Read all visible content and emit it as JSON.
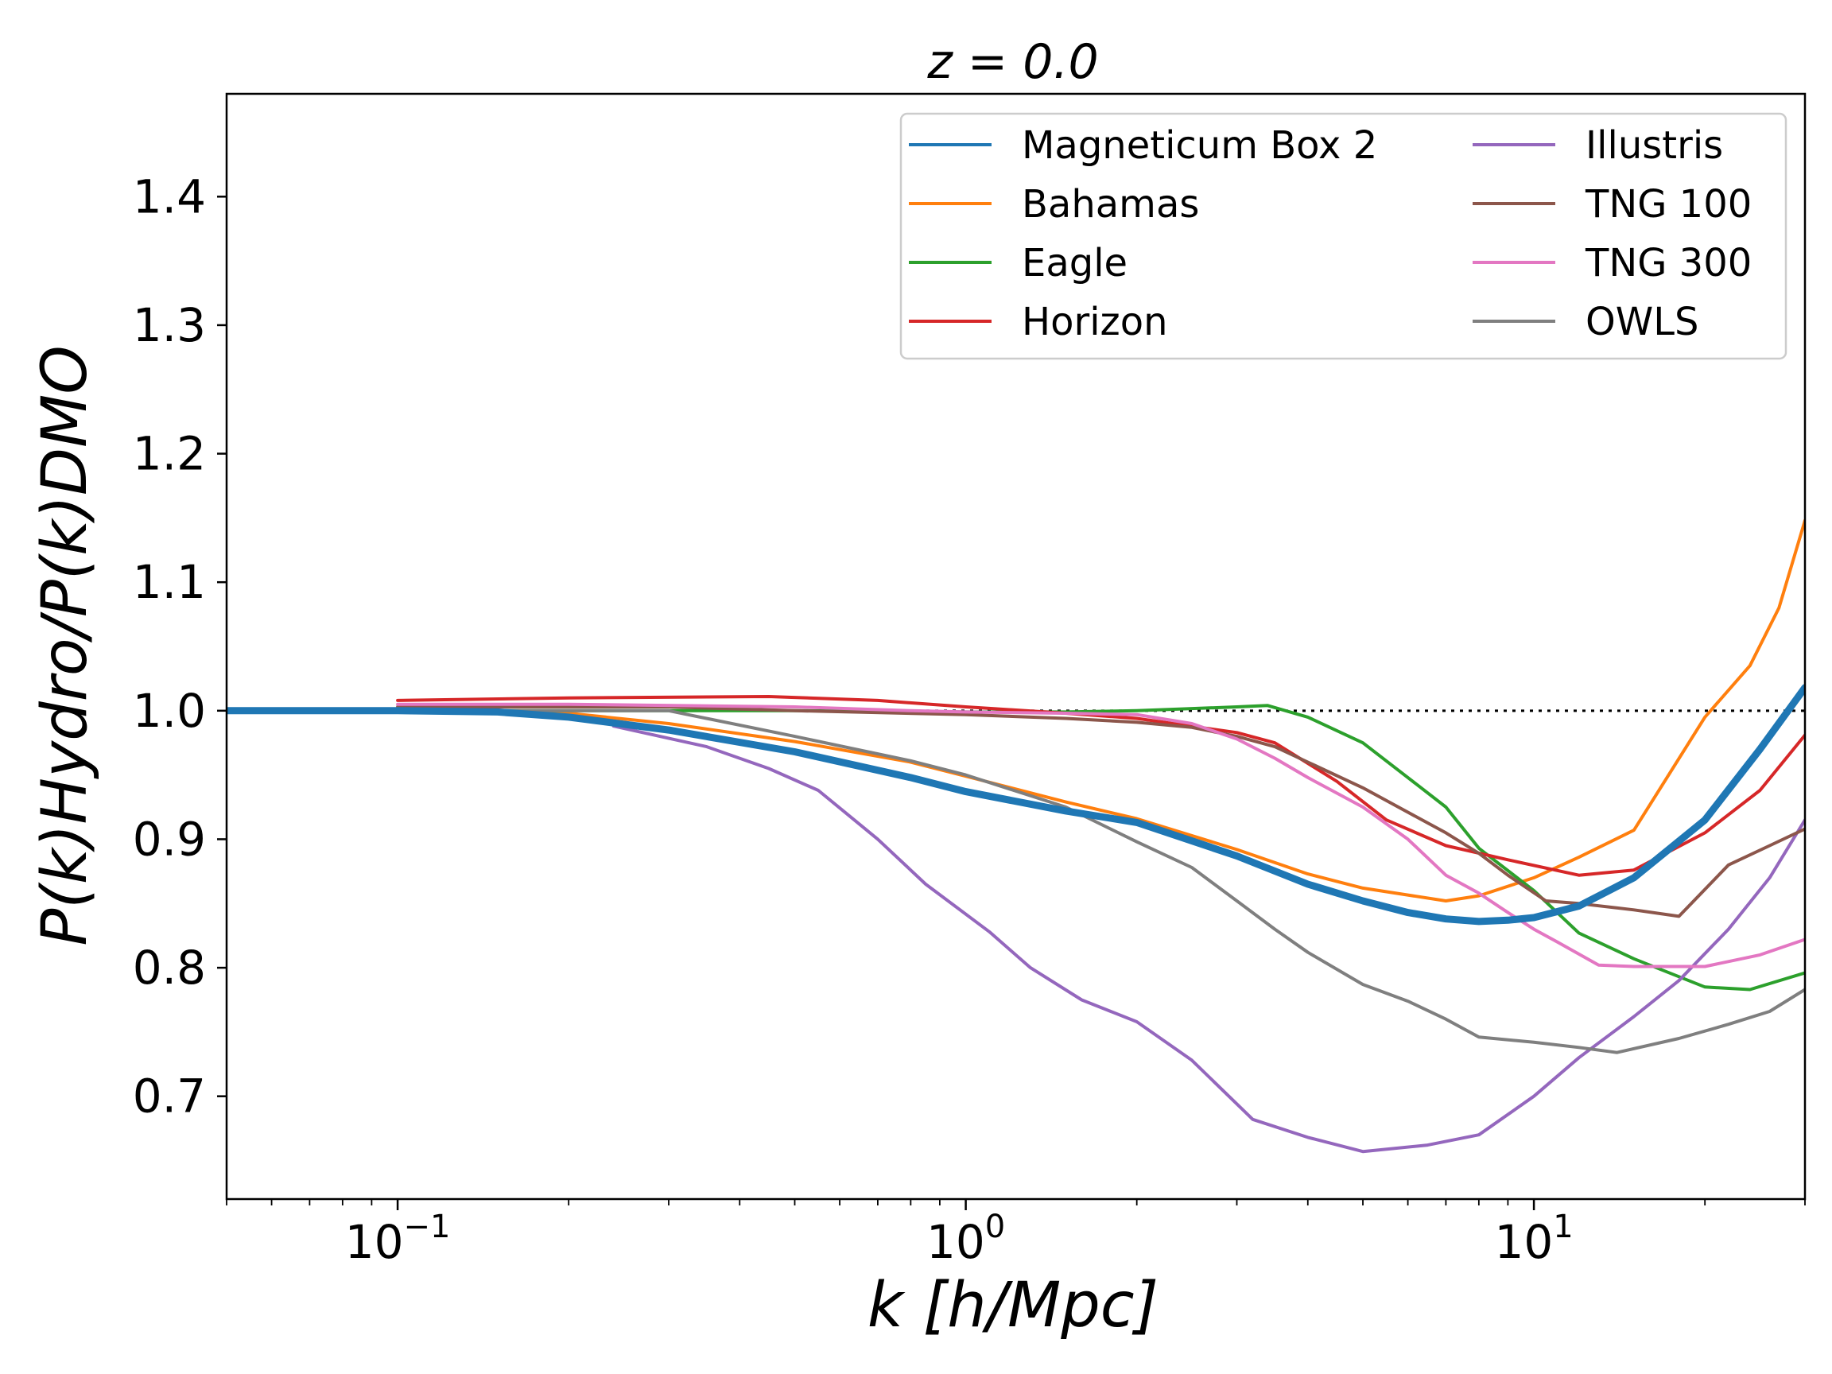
{
  "chart_data": {
    "type": "line",
    "title": "z = 0.0",
    "xlabel": "k [h/Mpc]",
    "ylabel": "P(k)Hydro/P(k)DMO",
    "xscale": "log",
    "xlim": [
      0.05,
      30
    ],
    "ylim": [
      0.62,
      1.48
    ],
    "x_tick_labels": [
      {
        "base": "10",
        "exp": "−1",
        "value": 0.1
      },
      {
        "base": "10",
        "exp": "0",
        "value": 1
      },
      {
        "base": "10",
        "exp": "1",
        "value": 10
      }
    ],
    "y_ticks": [
      0.7,
      0.8,
      0.9,
      1.0,
      1.1,
      1.2,
      1.3,
      1.4
    ],
    "y_tick_labels": [
      "0.7",
      "0.8",
      "0.9",
      "1.0",
      "1.1",
      "1.2",
      "1.3",
      "1.4"
    ],
    "reference_line": 1.0,
    "legend_position": "top-right",
    "series": [
      {
        "name": "Magneticum Box 2",
        "color": "#1f77b4",
        "highlight": true,
        "x": [
          0.05,
          0.1,
          0.15,
          0.2,
          0.3,
          0.5,
          0.8,
          1.0,
          1.5,
          2.0,
          3.0,
          4.0,
          5.0,
          6.0,
          7.0,
          8.0,
          9.0,
          10.0,
          12.0,
          15.0,
          20.0,
          25.0,
          30.0
        ],
        "values": [
          1.0,
          1.0,
          0.999,
          0.995,
          0.985,
          0.968,
          0.948,
          0.937,
          0.922,
          0.913,
          0.887,
          0.865,
          0.852,
          0.843,
          0.838,
          0.836,
          0.837,
          0.839,
          0.848,
          0.87,
          0.915,
          0.97,
          1.018
        ]
      },
      {
        "name": "Bahamas",
        "color": "#ff7f0e",
        "x": [
          0.1,
          0.2,
          0.3,
          0.5,
          0.8,
          1.0,
          1.5,
          2.0,
          3.0,
          4.0,
          5.0,
          7.0,
          8.0,
          10.0,
          12.0,
          15.0,
          20.0,
          24.0,
          27.0,
          30.0
        ],
        "values": [
          1.0,
          0.998,
          0.99,
          0.976,
          0.96,
          0.949,
          0.929,
          0.916,
          0.892,
          0.873,
          0.862,
          0.852,
          0.856,
          0.87,
          0.886,
          0.907,
          0.995,
          1.035,
          1.08,
          1.148
        ]
      },
      {
        "name": "Eagle",
        "color": "#2ca02c",
        "x": [
          0.1,
          0.3,
          0.5,
          1.0,
          1.5,
          2.0,
          3.0,
          3.4,
          4.0,
          5.0,
          6.0,
          7.0,
          8.0,
          10.0,
          12.0,
          15.0,
          20.0,
          24.0,
          30.0
        ],
        "values": [
          1.0,
          1.0,
          1.0,
          0.999,
          0.999,
          1.0,
          1.003,
          1.004,
          0.995,
          0.975,
          0.948,
          0.925,
          0.893,
          0.86,
          0.827,
          0.807,
          0.785,
          0.783,
          0.796
        ]
      },
      {
        "name": "Horizon",
        "color": "#d62728",
        "x": [
          0.1,
          0.2,
          0.45,
          0.7,
          1.0,
          1.5,
          2.0,
          3.0,
          3.5,
          4.5,
          5.5,
          7.0,
          9.0,
          12.0,
          15.0,
          20.0,
          25.0,
          30.0
        ],
        "values": [
          1.008,
          1.01,
          1.011,
          1.008,
          1.003,
          0.998,
          0.994,
          0.983,
          0.975,
          0.945,
          0.915,
          0.895,
          0.884,
          0.872,
          0.876,
          0.905,
          0.938,
          0.981
        ]
      },
      {
        "name": "Illustris",
        "color": "#9467bd",
        "x": [
          0.24,
          0.35,
          0.45,
          0.55,
          0.7,
          0.85,
          1.1,
          1.3,
          1.6,
          2.0,
          2.5,
          3.2,
          4.0,
          5.0,
          6.5,
          8.0,
          10.0,
          12.0,
          15.0,
          18.0,
          22.0,
          26.0,
          30.0
        ],
        "values": [
          0.988,
          0.972,
          0.955,
          0.938,
          0.9,
          0.865,
          0.828,
          0.8,
          0.775,
          0.758,
          0.728,
          0.682,
          0.668,
          0.657,
          0.662,
          0.67,
          0.7,
          0.73,
          0.762,
          0.79,
          0.83,
          0.87,
          0.915
        ]
      },
      {
        "name": "TNG 100",
        "color": "#8c564b",
        "x": [
          0.1,
          0.3,
          0.5,
          1.0,
          1.5,
          2.0,
          2.5,
          3.0,
          3.5,
          4.0,
          5.0,
          6.0,
          7.0,
          8.0,
          9.0,
          10.5,
          12.0,
          15.0,
          18.0,
          22.0,
          26.0,
          30.0
        ],
        "values": [
          1.003,
          1.003,
          1.0,
          0.997,
          0.994,
          0.991,
          0.987,
          0.98,
          0.972,
          0.96,
          0.94,
          0.921,
          0.905,
          0.889,
          0.872,
          0.852,
          0.85,
          0.845,
          0.84,
          0.88,
          0.895,
          0.908
        ]
      },
      {
        "name": "TNG 300",
        "color": "#e377c2",
        "x": [
          0.1,
          0.2,
          0.5,
          0.8,
          1.0,
          1.5,
          2.0,
          2.5,
          3.0,
          3.5,
          4.0,
          5.0,
          6.0,
          7.0,
          8.0,
          9.0,
          10.0,
          11.0,
          13.0,
          15.0,
          20.0,
          25.0,
          30.0
        ],
        "values": [
          1.005,
          1.005,
          1.003,
          1.0,
          0.999,
          0.998,
          0.997,
          0.99,
          0.978,
          0.963,
          0.948,
          0.925,
          0.9,
          0.872,
          0.858,
          0.843,
          0.83,
          0.82,
          0.802,
          0.801,
          0.801,
          0.81,
          0.822
        ]
      },
      {
        "name": "OWLS",
        "color": "#7f7f7f",
        "x": [
          0.1,
          0.3,
          0.5,
          0.8,
          1.0,
          1.5,
          2.0,
          2.5,
          3.0,
          3.5,
          4.0,
          5.0,
          6.0,
          7.0,
          8.0,
          10.0,
          12.0,
          14.0,
          18.0,
          22.0,
          26.0,
          30.0
        ],
        "values": [
          1.0,
          1.0,
          0.98,
          0.961,
          0.95,
          0.925,
          0.898,
          0.878,
          0.852,
          0.83,
          0.812,
          0.787,
          0.774,
          0.76,
          0.746,
          0.742,
          0.738,
          0.734,
          0.745,
          0.756,
          0.766,
          0.783
        ]
      }
    ]
  }
}
